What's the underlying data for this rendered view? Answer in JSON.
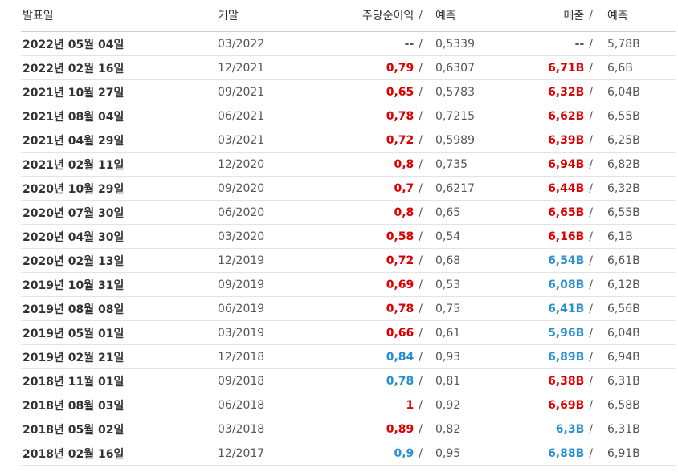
{
  "header": {
    "date": "발표일",
    "period": "기말",
    "eps": "주당순이익",
    "eps_sep": "/",
    "eps_forecast": "예측",
    "revenue": "매출",
    "rev_sep": "/",
    "revenue_forecast": "예측"
  },
  "colors": {
    "beat": "#dd0000",
    "miss": "#2a8fd0",
    "neutral": "#555555"
  },
  "rows": [
    {
      "date": "2022년 05월 04일",
      "period": "03/2022",
      "eps": "--",
      "eps_forecast": "0,5339",
      "revenue": "--",
      "revenue_forecast": "5,78B",
      "eps_color": "gray",
      "rev_color": "gray"
    },
    {
      "date": "2022년 02월 16일",
      "period": "12/2021",
      "eps": "0,79",
      "eps_forecast": "0,6307",
      "revenue": "6,71B",
      "revenue_forecast": "6,6B",
      "eps_color": "red",
      "rev_color": "red"
    },
    {
      "date": "2021년 10월 27일",
      "period": "09/2021",
      "eps": "0,65",
      "eps_forecast": "0,5783",
      "revenue": "6,32B",
      "revenue_forecast": "6,04B",
      "eps_color": "red",
      "rev_color": "red"
    },
    {
      "date": "2021년 08월 04일",
      "period": "06/2021",
      "eps": "0,78",
      "eps_forecast": "0,7215",
      "revenue": "6,62B",
      "revenue_forecast": "6,55B",
      "eps_color": "red",
      "rev_color": "red"
    },
    {
      "date": "2021년 04월 29일",
      "period": "03/2021",
      "eps": "0,72",
      "eps_forecast": "0,5989",
      "revenue": "6,39B",
      "revenue_forecast": "6,25B",
      "eps_color": "red",
      "rev_color": "red"
    },
    {
      "date": "2021년 02월 11일",
      "period": "12/2020",
      "eps": "0,8",
      "eps_forecast": "0,735",
      "revenue": "6,94B",
      "revenue_forecast": "6,82B",
      "eps_color": "red",
      "rev_color": "red"
    },
    {
      "date": "2020년 10월 29일",
      "period": "09/2020",
      "eps": "0,7",
      "eps_forecast": "0,6217",
      "revenue": "6,44B",
      "revenue_forecast": "6,32B",
      "eps_color": "red",
      "rev_color": "red"
    },
    {
      "date": "2020년 07월 30일",
      "period": "06/2020",
      "eps": "0,8",
      "eps_forecast": "0,65",
      "revenue": "6,65B",
      "revenue_forecast": "6,55B",
      "eps_color": "red",
      "rev_color": "red"
    },
    {
      "date": "2020년 04월 30일",
      "period": "03/2020",
      "eps": "0,58",
      "eps_forecast": "0,54",
      "revenue": "6,16B",
      "revenue_forecast": "6,1B",
      "eps_color": "red",
      "rev_color": "red"
    },
    {
      "date": "2020년 02월 13일",
      "period": "12/2019",
      "eps": "0,72",
      "eps_forecast": "0,68",
      "revenue": "6,54B",
      "revenue_forecast": "6,61B",
      "eps_color": "red",
      "rev_color": "blue"
    },
    {
      "date": "2019년 10월 31일",
      "period": "09/2019",
      "eps": "0,69",
      "eps_forecast": "0,53",
      "revenue": "6,08B",
      "revenue_forecast": "6,12B",
      "eps_color": "red",
      "rev_color": "blue"
    },
    {
      "date": "2019년 08월 08일",
      "period": "06/2019",
      "eps": "0,78",
      "eps_forecast": "0,75",
      "revenue": "6,41B",
      "revenue_forecast": "6,56B",
      "eps_color": "red",
      "rev_color": "blue"
    },
    {
      "date": "2019년 05월 01일",
      "period": "03/2019",
      "eps": "0,66",
      "eps_forecast": "0,61",
      "revenue": "5,96B",
      "revenue_forecast": "6,04B",
      "eps_color": "red",
      "rev_color": "blue"
    },
    {
      "date": "2019년 02월 21일",
      "period": "12/2018",
      "eps": "0,84",
      "eps_forecast": "0,93",
      "revenue": "6,89B",
      "revenue_forecast": "6,94B",
      "eps_color": "blue",
      "rev_color": "blue"
    },
    {
      "date": "2018년 11월 01일",
      "period": "09/2018",
      "eps": "0,78",
      "eps_forecast": "0,81",
      "revenue": "6,38B",
      "revenue_forecast": "6,31B",
      "eps_color": "blue",
      "rev_color": "red"
    },
    {
      "date": "2018년 08월 03일",
      "period": "06/2018",
      "eps": "1",
      "eps_forecast": "0,92",
      "revenue": "6,69B",
      "revenue_forecast": "6,58B",
      "eps_color": "red",
      "rev_color": "red"
    },
    {
      "date": "2018년 05월 02일",
      "period": "03/2018",
      "eps": "0,89",
      "eps_forecast": "0,82",
      "revenue": "6,3B",
      "revenue_forecast": "6,31B",
      "eps_color": "red",
      "rev_color": "blue"
    },
    {
      "date": "2018년 02월 16일",
      "period": "12/2017",
      "eps": "0,9",
      "eps_forecast": "0,95",
      "revenue": "6,88B",
      "revenue_forecast": "6,91B",
      "eps_color": "blue",
      "rev_color": "blue"
    }
  ]
}
